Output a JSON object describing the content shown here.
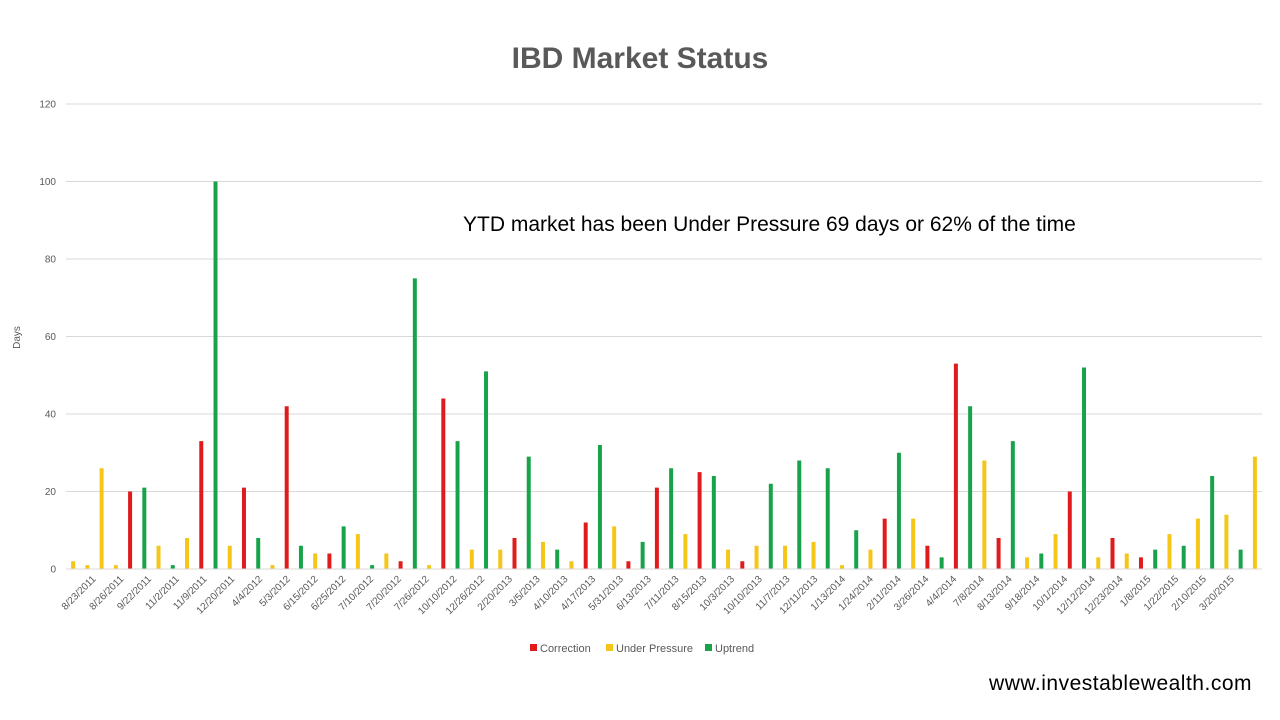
{
  "chart_data": {
    "type": "bar",
    "title": "IBD Market Status",
    "ylabel": "Days",
    "xlabel": "",
    "ylim": [
      0,
      120
    ],
    "yticks": [
      0,
      20,
      40,
      60,
      80,
      100,
      120
    ],
    "grid": true,
    "legend_position": "bottom",
    "colors": {
      "Correction": "#e01b1b",
      "Under Pressure": "#f5c518",
      "Uptrend": "#18a34a"
    },
    "series_names": [
      "Correction",
      "Under Pressure",
      "Uptrend"
    ],
    "xtick_labels": [
      "8/23/2011",
      "8/26/2011",
      "9/22/2011",
      "11/2/2011",
      "11/9/2011",
      "12/20/2011",
      "4/4/2012",
      "5/3/2012",
      "6/15/2012",
      "6/25/2012",
      "7/10/2012",
      "7/20/2012",
      "7/26/2012",
      "10/10/2012",
      "12/26/2012",
      "2/20/2013",
      "3/5/2013",
      "4/10/2013",
      "4/17/2013",
      "5/31/2013",
      "6/13/2013",
      "7/11/2013",
      "8/15/2013",
      "10/3/2013",
      "10/10/2013",
      "11/7/2013",
      "12/11/2013",
      "1/13/2014",
      "1/24/2014",
      "2/11/2014",
      "3/26/2014",
      "4/4/2014",
      "7/8/2014",
      "8/13/2014",
      "9/18/2014",
      "10/1/2014",
      "12/12/2014",
      "12/23/2014",
      "1/8/2015",
      "1/22/2015",
      "2/10/2015",
      "3/20/2015"
    ],
    "bars": [
      {
        "status": "Under Pressure",
        "value": 2
      },
      {
        "status": "Under Pressure",
        "value": 1
      },
      {
        "status": "Under Pressure",
        "value": 26
      },
      {
        "status": "Under Pressure",
        "value": 1
      },
      {
        "status": "Correction",
        "value": 20
      },
      {
        "status": "Uptrend",
        "value": 21
      },
      {
        "status": "Under Pressure",
        "value": 6
      },
      {
        "status": "Uptrend",
        "value": 1
      },
      {
        "status": "Under Pressure",
        "value": 8
      },
      {
        "status": "Correction",
        "value": 33
      },
      {
        "status": "Uptrend",
        "value": 100
      },
      {
        "status": "Under Pressure",
        "value": 6
      },
      {
        "status": "Correction",
        "value": 21
      },
      {
        "status": "Uptrend",
        "value": 8
      },
      {
        "status": "Under Pressure",
        "value": 1
      },
      {
        "status": "Correction",
        "value": 42
      },
      {
        "status": "Uptrend",
        "value": 6
      },
      {
        "status": "Under Pressure",
        "value": 4
      },
      {
        "status": "Correction",
        "value": 4
      },
      {
        "status": "Uptrend",
        "value": 11
      },
      {
        "status": "Under Pressure",
        "value": 9
      },
      {
        "status": "Uptrend",
        "value": 1
      },
      {
        "status": "Under Pressure",
        "value": 4
      },
      {
        "status": "Correction",
        "value": 2
      },
      {
        "status": "Uptrend",
        "value": 75
      },
      {
        "status": "Under Pressure",
        "value": 1
      },
      {
        "status": "Correction",
        "value": 44
      },
      {
        "status": "Uptrend",
        "value": 33
      },
      {
        "status": "Under Pressure",
        "value": 5
      },
      {
        "status": "Uptrend",
        "value": 51
      },
      {
        "status": "Under Pressure",
        "value": 5
      },
      {
        "status": "Correction",
        "value": 8
      },
      {
        "status": "Uptrend",
        "value": 29
      },
      {
        "status": "Under Pressure",
        "value": 7
      },
      {
        "status": "Uptrend",
        "value": 5
      },
      {
        "status": "Under Pressure",
        "value": 2
      },
      {
        "status": "Correction",
        "value": 12
      },
      {
        "status": "Uptrend",
        "value": 32
      },
      {
        "status": "Under Pressure",
        "value": 11
      },
      {
        "status": "Correction",
        "value": 2
      },
      {
        "status": "Uptrend",
        "value": 7
      },
      {
        "status": "Correction",
        "value": 21
      },
      {
        "status": "Uptrend",
        "value": 26
      },
      {
        "status": "Under Pressure",
        "value": 9
      },
      {
        "status": "Correction",
        "value": 25
      },
      {
        "status": "Uptrend",
        "value": 24
      },
      {
        "status": "Under Pressure",
        "value": 5
      },
      {
        "status": "Correction",
        "value": 2
      },
      {
        "status": "Under Pressure",
        "value": 6
      },
      {
        "status": "Uptrend",
        "value": 22
      },
      {
        "status": "Under Pressure",
        "value": 6
      },
      {
        "status": "Uptrend",
        "value": 28
      },
      {
        "status": "Under Pressure",
        "value": 7
      },
      {
        "status": "Uptrend",
        "value": 26
      },
      {
        "status": "Under Pressure",
        "value": 1
      },
      {
        "status": "Uptrend",
        "value": 10
      },
      {
        "status": "Under Pressure",
        "value": 5
      },
      {
        "status": "Correction",
        "value": 13
      },
      {
        "status": "Uptrend",
        "value": 30
      },
      {
        "status": "Under Pressure",
        "value": 13
      },
      {
        "status": "Correction",
        "value": 6
      },
      {
        "status": "Uptrend",
        "value": 3
      },
      {
        "status": "Correction",
        "value": 53
      },
      {
        "status": "Uptrend",
        "value": 42
      },
      {
        "status": "Under Pressure",
        "value": 28
      },
      {
        "status": "Correction",
        "value": 8
      },
      {
        "status": "Uptrend",
        "value": 33
      },
      {
        "status": "Under Pressure",
        "value": 3
      },
      {
        "status": "Uptrend",
        "value": 4
      },
      {
        "status": "Under Pressure",
        "value": 9
      },
      {
        "status": "Correction",
        "value": 20
      },
      {
        "status": "Uptrend",
        "value": 52
      },
      {
        "status": "Under Pressure",
        "value": 3
      },
      {
        "status": "Correction",
        "value": 8
      },
      {
        "status": "Under Pressure",
        "value": 4
      },
      {
        "status": "Correction",
        "value": 3
      },
      {
        "status": "Uptrend",
        "value": 5
      },
      {
        "status": "Under Pressure",
        "value": 9
      },
      {
        "status": "Uptrend",
        "value": 6
      },
      {
        "status": "Under Pressure",
        "value": 13
      },
      {
        "status": "Uptrend",
        "value": 24
      },
      {
        "status": "Under Pressure",
        "value": 14
      },
      {
        "status": "Uptrend",
        "value": 5
      },
      {
        "status": "Under Pressure",
        "value": 29
      }
    ]
  },
  "annotation": "YTD market has been Under Pressure 69 days or 62% of the time",
  "footer": {
    "url": "www.investablewealth.com"
  }
}
